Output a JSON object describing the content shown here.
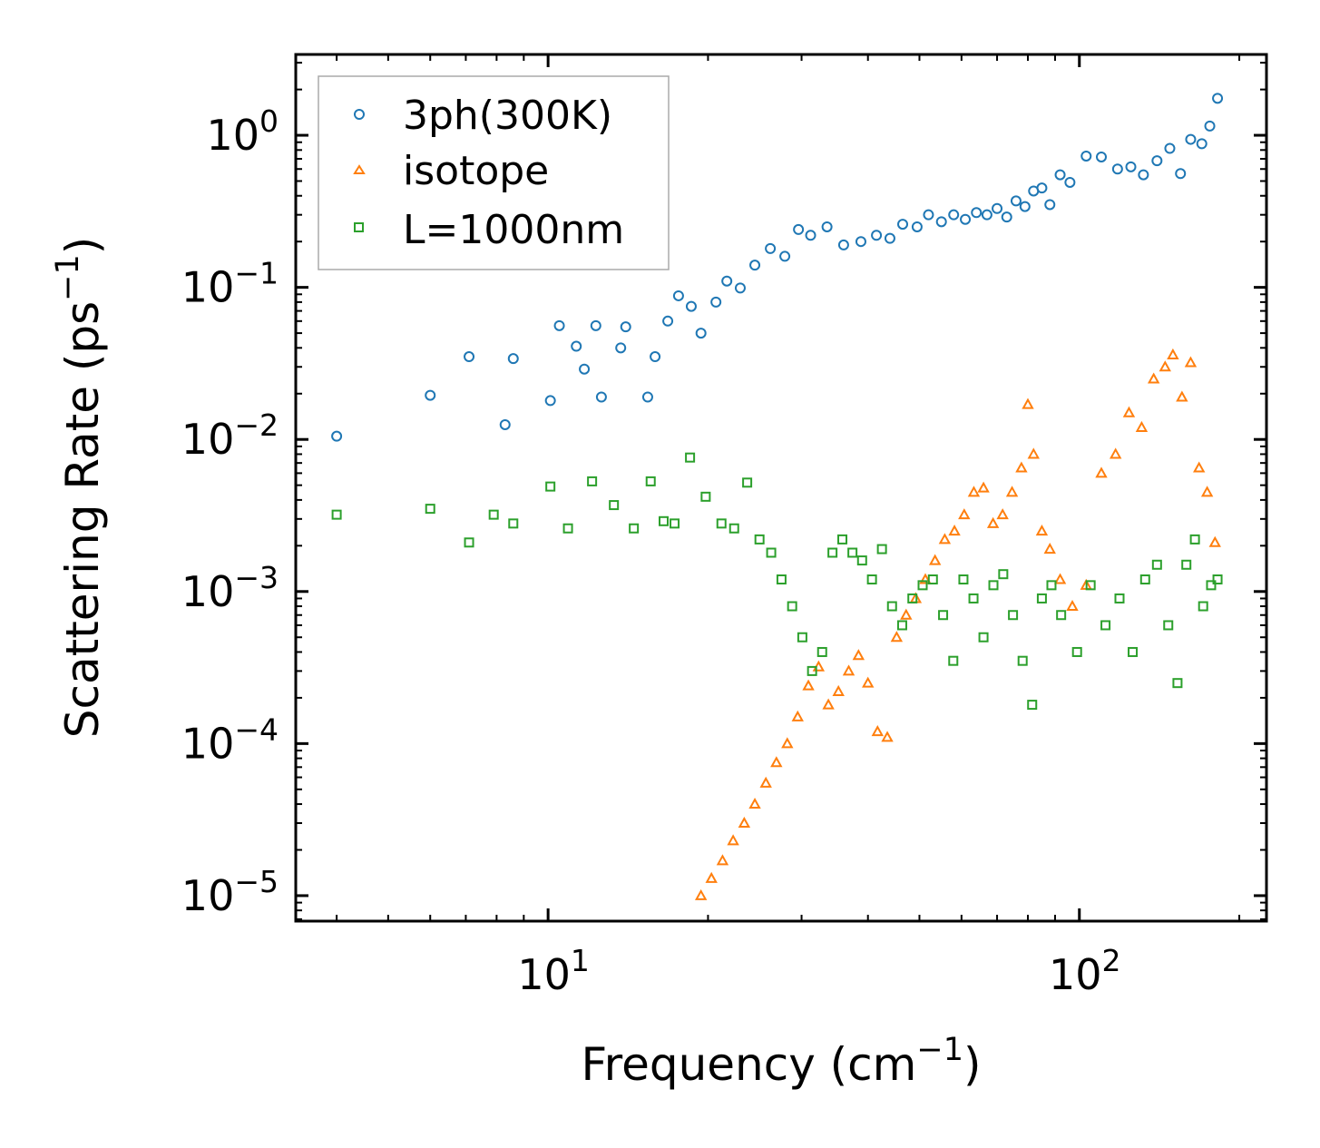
{
  "chart_data": {
    "type": "scatter",
    "xscale": "log",
    "yscale": "log",
    "xlim": [
      3.35,
      225
    ],
    "ylim": [
      6.8e-06,
      3.4
    ],
    "xlabel": {
      "text": "Frequency (cm",
      "sup": "−1",
      "close": ")"
    },
    "ylabel": {
      "text": "Scattering Rate (ps",
      "sup": "−1",
      "close": ")"
    },
    "xticks": [
      {
        "value": 10,
        "base": "10",
        "exp": "1"
      },
      {
        "value": 100,
        "base": "10",
        "exp": "2"
      }
    ],
    "yticks": [
      {
        "value": 1,
        "base": "10",
        "exp": "0"
      },
      {
        "value": 0.1,
        "base": "10",
        "exp": "−1"
      },
      {
        "value": 0.01,
        "base": "10",
        "exp": "−2"
      },
      {
        "value": 0.001,
        "base": "10",
        "exp": "−3"
      },
      {
        "value": 0.0001,
        "base": "10",
        "exp": "−4"
      },
      {
        "value": 1e-05,
        "base": "10",
        "exp": "−5"
      }
    ],
    "legend_position": "top-left",
    "series": [
      {
        "name": "3ph(300K)",
        "marker": "circle",
        "color": "#1f77b4",
        "x": [
          4.0,
          6.0,
          7.1,
          8.3,
          8.6,
          10.1,
          10.5,
          11.3,
          11.7,
          12.3,
          12.6,
          13.7,
          14.0,
          15.4,
          15.9,
          16.8,
          17.6,
          18.6,
          19.4,
          20.7,
          21.7,
          23.0,
          24.5,
          26.2,
          27.9,
          29.6,
          31.2,
          33.5,
          36.0,
          38.8,
          41.5,
          44.0,
          46.5,
          49.5,
          52.0,
          55.0,
          58.0,
          61.0,
          64.0,
          67.0,
          70.0,
          73.0,
          76.0,
          79.0,
          82.0,
          85.0,
          88.0,
          92.0,
          96.0,
          103.0,
          110.0,
          118.0,
          125.0,
          132.0,
          140.0,
          148.0,
          155.0,
          162.0,
          170.0,
          176.0,
          182.0
        ],
        "y": [
          0.0105,
          0.0195,
          0.035,
          0.0125,
          0.034,
          0.018,
          0.056,
          0.041,
          0.029,
          0.056,
          0.019,
          0.04,
          0.055,
          0.019,
          0.035,
          0.06,
          0.088,
          0.075,
          0.05,
          0.08,
          0.11,
          0.099,
          0.14,
          0.18,
          0.16,
          0.24,
          0.22,
          0.25,
          0.19,
          0.2,
          0.22,
          0.21,
          0.26,
          0.25,
          0.3,
          0.27,
          0.3,
          0.28,
          0.31,
          0.3,
          0.33,
          0.29,
          0.37,
          0.34,
          0.43,
          0.45,
          0.35,
          0.55,
          0.49,
          0.73,
          0.72,
          0.6,
          0.62,
          0.55,
          0.68,
          0.82,
          0.56,
          0.94,
          0.88,
          1.15,
          1.75
        ]
      },
      {
        "name": "isotope",
        "marker": "triangle",
        "color": "#ff7f0e",
        "x": [
          19.4,
          20.3,
          21.3,
          22.3,
          23.4,
          24.5,
          25.7,
          26.9,
          28.2,
          29.5,
          30.9,
          32.3,
          33.7,
          35.2,
          36.8,
          38.4,
          40.0,
          41.7,
          43.5,
          45.3,
          47.2,
          49.2,
          51.3,
          53.5,
          55.8,
          58.2,
          60.7,
          63.3,
          66.0,
          68.8,
          71.7,
          74.7,
          77.8,
          80.0,
          82.0,
          85.0,
          88.0,
          92.0,
          97.0,
          103.0,
          110.0,
          117.0,
          124.0,
          131.0,
          138.0,
          145.0,
          150.0,
          156.0,
          162.0,
          168.0,
          174.0,
          180.0
        ],
        "y": [
          1e-05,
          1.3e-05,
          1.7e-05,
          2.3e-05,
          3e-05,
          4e-05,
          5.5e-05,
          7.5e-05,
          0.0001,
          0.00015,
          0.00024,
          0.00032,
          0.00018,
          0.00022,
          0.0003,
          0.00038,
          0.00025,
          0.00012,
          0.00011,
          0.0005,
          0.0007,
          0.0009,
          0.0012,
          0.0016,
          0.0022,
          0.0025,
          0.0032,
          0.0045,
          0.0048,
          0.0028,
          0.0032,
          0.0045,
          0.0065,
          0.017,
          0.008,
          0.0025,
          0.0019,
          0.0012,
          0.0008,
          0.0011,
          0.006,
          0.008,
          0.015,
          0.012,
          0.025,
          0.03,
          0.036,
          0.019,
          0.032,
          0.0065,
          0.0045,
          0.0021
        ]
      },
      {
        "name": "L=1000nm",
        "marker": "square",
        "color": "#2ca02c",
        "x": [
          4.0,
          6.0,
          7.1,
          7.9,
          8.6,
          10.1,
          10.9,
          12.1,
          13.3,
          14.5,
          15.6,
          16.5,
          17.3,
          18.5,
          19.8,
          21.2,
          22.4,
          23.7,
          25.0,
          26.3,
          27.5,
          28.8,
          30.1,
          31.4,
          32.8,
          34.3,
          35.8,
          37.4,
          39.0,
          40.7,
          42.5,
          44.4,
          46.4,
          48.5,
          50.7,
          53.0,
          55.4,
          57.9,
          60.5,
          63.2,
          66.0,
          68.9,
          71.9,
          75.0,
          78.2,
          81.5,
          85.0,
          88.6,
          92.4,
          99.0,
          105.0,
          112.0,
          119.0,
          126.0,
          133.0,
          140.0,
          147.0,
          153.0,
          159.0,
          165.0,
          171.0,
          177.0,
          182.0
        ],
        "y": [
          0.0032,
          0.0035,
          0.0021,
          0.0032,
          0.0028,
          0.0049,
          0.0026,
          0.0053,
          0.0037,
          0.0026,
          0.0053,
          0.0029,
          0.0028,
          0.0076,
          0.0042,
          0.0028,
          0.0026,
          0.0052,
          0.0022,
          0.0018,
          0.0012,
          0.0008,
          0.0005,
          0.0003,
          0.0004,
          0.0018,
          0.0022,
          0.0018,
          0.0016,
          0.0012,
          0.0019,
          0.0008,
          0.0006,
          0.0009,
          0.0011,
          0.0012,
          0.0007,
          0.00035,
          0.0012,
          0.0009,
          0.0005,
          0.0011,
          0.0013,
          0.0007,
          0.00035,
          0.00018,
          0.0009,
          0.0011,
          0.0007,
          0.0004,
          0.0011,
          0.0006,
          0.0009,
          0.0004,
          0.0012,
          0.0015,
          0.0006,
          0.00025,
          0.0015,
          0.0022,
          0.0008,
          0.0011,
          0.0012
        ]
      }
    ]
  }
}
